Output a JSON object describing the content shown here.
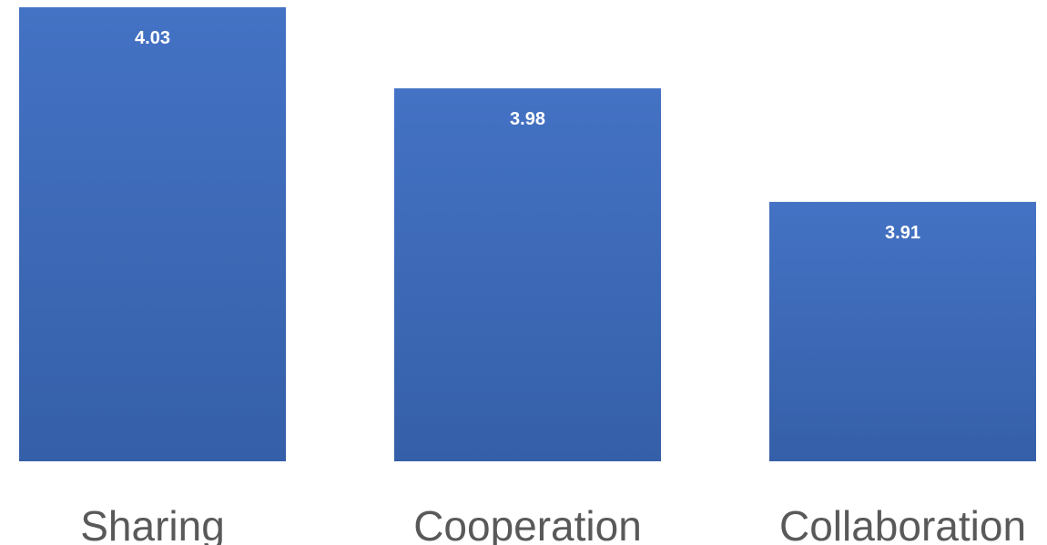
{
  "chart_data": {
    "type": "bar",
    "title": "",
    "xlabel": "",
    "ylabel": "",
    "categories": [
      "Sharing",
      "Cooperation",
      "Collaboration"
    ],
    "values": [
      4.03,
      3.98,
      3.91
    ],
    "data_labels": [
      "4.03",
      "3.98",
      "3.91"
    ],
    "ylim": [
      3.75,
      4.03
    ],
    "grid": false,
    "legend": "none",
    "colors": {
      "bar_top": "#4472C4",
      "bar_bottom": "#355FA8",
      "data_label": "#FFFFFF",
      "category_label": "#595959",
      "background": "#FFFFFF"
    }
  }
}
